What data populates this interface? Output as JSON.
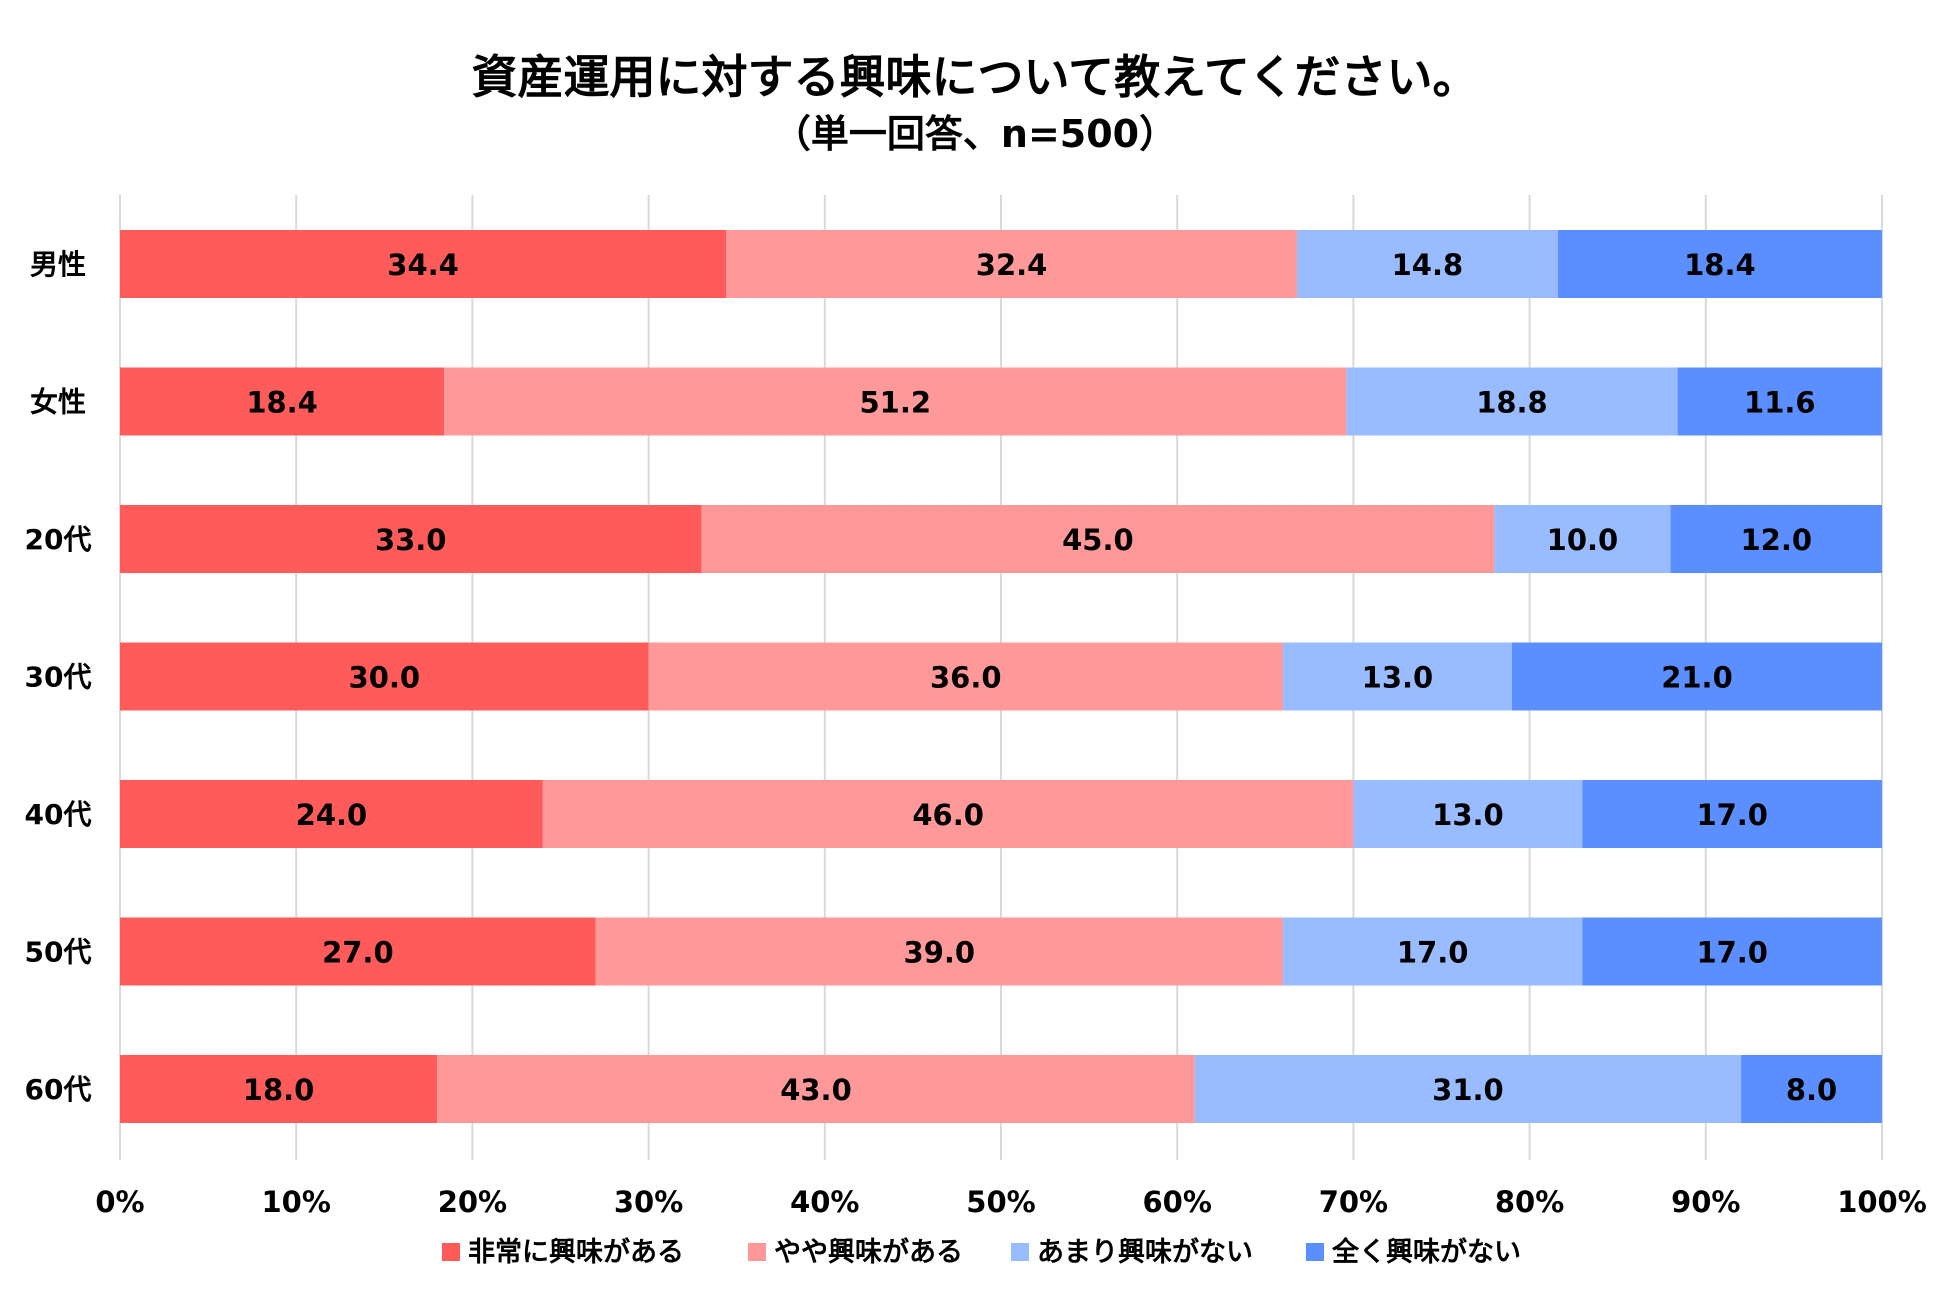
{
  "chart_data": {
    "type": "bar",
    "orientation": "horizontal",
    "stacked": true,
    "title": "資産運用に対する興味について教えてください。",
    "subtitle": "（単一回答、n=500）",
    "categories": [
      "男性",
      "女性",
      "20代",
      "30代",
      "40代",
      "50代",
      "60代"
    ],
    "series": [
      {
        "name": "非常に興味がある",
        "color": "#ff5b5b",
        "values": [
          34.4,
          18.4,
          33.0,
          30.0,
          24.0,
          27.0,
          18.0
        ]
      },
      {
        "name": "やや興味がある",
        "color": "#ff9999",
        "values": [
          32.4,
          51.2,
          45.0,
          36.0,
          46.0,
          39.0,
          43.0
        ]
      },
      {
        "name": "あまり興味がない",
        "color": "#99bbff",
        "values": [
          14.8,
          18.8,
          10.0,
          13.0,
          13.0,
          17.0,
          31.0
        ]
      },
      {
        "name": "全く興味がない",
        "color": "#5b8fff",
        "values": [
          18.4,
          11.6,
          12.0,
          21.0,
          17.0,
          17.0,
          8.0
        ]
      }
    ],
    "value_labels": [
      [
        "34.4",
        "32.4",
        "14.8",
        "18.4"
      ],
      [
        "18.4",
        "51.2",
        "18.8",
        "11.6"
      ],
      [
        "33.0",
        "45.0",
        "10.0",
        "12.0"
      ],
      [
        "30.0",
        "36.0",
        "13.0",
        "21.0"
      ],
      [
        "24.0",
        "46.0",
        "13.0",
        "17.0"
      ],
      [
        "27.0",
        "39.0",
        "17.0",
        "17.0"
      ],
      [
        "18.0",
        "43.0",
        "31.0",
        "8.0"
      ]
    ],
    "xlim": [
      0,
      100
    ],
    "xticks": [
      "0%",
      "10%",
      "20%",
      "30%",
      "40%",
      "50%",
      "60%",
      "70%",
      "80%",
      "90%",
      "100%"
    ],
    "grid": true,
    "legend_position": "bottom"
  }
}
